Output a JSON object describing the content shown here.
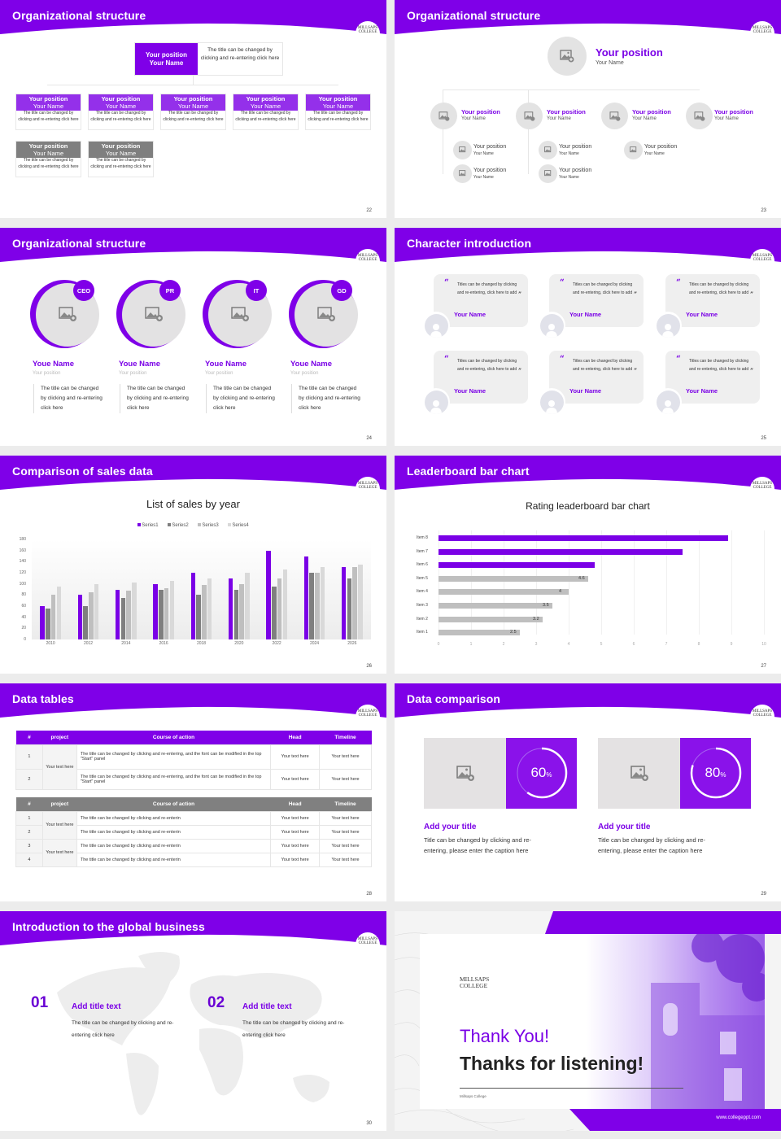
{
  "brand": {
    "primary": "#7f00e8",
    "gray_header": "#7f7f7f",
    "logo_line1": "MILLSAPS",
    "logo_line2": "COLLEGE"
  },
  "slides": {
    "s22": {
      "title": "Organizational structure",
      "page": "22",
      "top": {
        "position": "Your position",
        "name": "Your Name",
        "desc": "The title can be changed by clicking and re-entering click here"
      },
      "row1": [
        {
          "position": "Your position",
          "name": "Your Name",
          "desc": "The title can be changed by clicking and re-entering click here"
        },
        {
          "position": "Your position",
          "name": "Your Name",
          "desc": "The title can be changed by clicking and re-entering click here"
        },
        {
          "position": "Your position",
          "name": "Your Name",
          "desc": "The title can be changed by clicking and re-entering click here"
        },
        {
          "position": "Your position",
          "name": "Your Name",
          "desc": "The title can be changed by clicking and re-entering click here"
        },
        {
          "position": "Your position",
          "name": "Your Name",
          "desc": "The title can be changed by clicking and re-entering click here"
        }
      ],
      "row2": [
        {
          "position": "Your position",
          "name": "Your Name",
          "desc": "The title can be changed by clicking and re-entering click here"
        },
        {
          "position": "Your position",
          "name": "Your Name",
          "desc": "The title can be changed by clicking and re-entering click here"
        }
      ]
    },
    "s23": {
      "title": "Organizational structure",
      "page": "23",
      "top": {
        "position": "Your position",
        "name": "Your Name"
      },
      "level1": [
        {
          "position": "Your position",
          "name": "Your Name"
        },
        {
          "position": "Your position",
          "name": "Your Name"
        },
        {
          "position": "Your position",
          "name": "Your Name"
        },
        {
          "position": "Your position",
          "name": "Your Name"
        }
      ],
      "level2": [
        {
          "position": "Your position",
          "name": "Your Name"
        },
        {
          "position": "Your position",
          "name": "Your Name"
        },
        {
          "position": "Your position",
          "name": "Your Name"
        },
        {
          "position": "Your position",
          "name": "Your Name"
        },
        {
          "position": "Your position",
          "name": "Your Name"
        }
      ]
    },
    "s24": {
      "title": "Organizational structure",
      "page": "24",
      "people": [
        {
          "badge": "CEO",
          "name": "Youe Name",
          "position": "Your position",
          "desc": "The title can be changed by clicking and re-entering click here"
        },
        {
          "badge": "PR",
          "name": "Youe Name",
          "position": "Your position",
          "desc": "The title can be changed by clicking and re-entering click here"
        },
        {
          "badge": "IT",
          "name": "Youe Name",
          "position": "Your position",
          "desc": "The title can be changed by clicking and re-entering click here"
        },
        {
          "badge": "GD",
          "name": "Youe Name",
          "position": "Your position",
          "desc": "The title can be changed by clicking and re-entering click here"
        }
      ]
    },
    "s25": {
      "title": "Character introduction",
      "page": "25",
      "quotes": [
        {
          "text": "Titles can be changed by clicking and re-entering, click here to add",
          "name": "Your Name"
        },
        {
          "text": "Titles can be changed by clicking and re-entering, click here to add",
          "name": "Your Name"
        },
        {
          "text": "Titles can be changed by clicking and re-entering, click here to add",
          "name": "Your Name"
        },
        {
          "text": "Titles can be changed by clicking and re-entering, click here to add",
          "name": "Your Name"
        },
        {
          "text": "Titles can be changed by clicking and re-entering, click here to add",
          "name": "Your Name"
        },
        {
          "text": "Titles can be changed by clicking and re-entering, click here to add",
          "name": "Your Name"
        }
      ],
      "open_quote": "“",
      "close_quote": "”"
    },
    "s26": {
      "title": "Comparison of sales data",
      "page": "26"
    },
    "s27": {
      "title": "Leaderboard bar chart",
      "page": "27"
    },
    "s28": {
      "title": "Data tables",
      "page": "28",
      "headers": [
        "#",
        "project",
        "Course of action",
        "Head",
        "Timeline"
      ],
      "table1": {
        "project": "Your text here",
        "rows": [
          {
            "num": "1",
            "action": "The title can be changed by clicking and re-entering, and the font can be modified in the top \"Start\" panel",
            "head": "Your text here",
            "timeline": "Your text here"
          },
          {
            "num": "2",
            "action": "The title can be changed by clicking and re-entering, and the font can be modified in the top \"Start\" panel",
            "head": "Your text here",
            "timeline": "Your text here"
          }
        ]
      },
      "table2": {
        "project_a": "Your text here",
        "project_b": "Your text here",
        "rows": [
          {
            "num": "1",
            "action": "The title can be changed by clicking and re-enterin",
            "head": "Your text here",
            "timeline": "Your text here"
          },
          {
            "num": "2",
            "action": "The title can be changed by clicking and re-enterin",
            "head": "Your text here",
            "timeline": "Your text here"
          },
          {
            "num": "3",
            "action": "The title can be changed by clicking and re-enterin",
            "head": "Your text here",
            "timeline": "Your text here"
          },
          {
            "num": "4",
            "action": "The title can be changed by clicking and re-enterin",
            "head": "Your text here",
            "timeline": "Your text here"
          }
        ]
      }
    },
    "s29": {
      "title": "Data comparison",
      "page": "29",
      "items": [
        {
          "percent": "60",
          "unit": "%",
          "value": 60,
          "heading": "Add your title",
          "desc": "Title can be changed by clicking and re-entering, please enter the caption here"
        },
        {
          "percent": "80",
          "unit": "%",
          "value": 80,
          "heading": "Add your title",
          "desc": "Title can be changed by clicking and re-entering, please enter the caption here"
        }
      ]
    },
    "s30": {
      "title": "Introduction to the global business",
      "page": "30",
      "items": [
        {
          "num": "01",
          "heading": "Add title text",
          "desc": "The title can be changed by clicking and re-entering click here"
        },
        {
          "num": "02",
          "heading": "Add title text",
          "desc": "The title can be changed by clicking and re-entering click here"
        }
      ]
    },
    "s31": {
      "logo_line1": "MILLSAPS",
      "logo_line2": "COLLEGE",
      "thank_you": "Thank You!",
      "thanks_listening": "Thanks for listening!",
      "subtitle": "Millsaps College",
      "url": "www.collegeppt.com"
    }
  },
  "chart_data": [
    {
      "type": "bar",
      "title": "List of sales by year",
      "categories": [
        "2010",
        "2012",
        "2014",
        "2016",
        "2018",
        "2020",
        "2022",
        "2024",
        "2026"
      ],
      "series": [
        {
          "name": "Series1",
          "color": "#7a00e6",
          "values": [
            60,
            80,
            90,
            100,
            120,
            110,
            160,
            150,
            130
          ]
        },
        {
          "name": "Series2",
          "color": "#7f7f7f",
          "values": [
            55,
            60,
            75,
            90,
            80,
            90,
            95,
            120,
            110
          ]
        },
        {
          "name": "Series3",
          "color": "#bfbfbf",
          "values": [
            80,
            85,
            88,
            92,
            98,
            100,
            110,
            120,
            130
          ]
        },
        {
          "name": "Series4",
          "color": "#d9d9d9",
          "values": [
            95,
            99,
            102,
            105,
            110,
            120,
            126,
            130,
            135
          ]
        }
      ],
      "xlabel": "",
      "ylabel": "",
      "ylim": [
        0,
        180
      ],
      "yticks": [
        0,
        20,
        40,
        60,
        80,
        100,
        120,
        140,
        160,
        180
      ],
      "legend_position": "top",
      "grid": false
    },
    {
      "type": "bar",
      "orientation": "horizontal",
      "title": "Rating leaderboard bar chart",
      "categories": [
        "Item 8",
        "Item 7",
        "Item 6",
        "Item 5",
        "Item 4",
        "Item 3",
        "Item 2",
        "Item 1"
      ],
      "values": [
        8.9,
        7.5,
        4.8,
        4.6,
        4,
        3.5,
        3.2,
        2.5
      ],
      "value_labels": [
        "",
        "",
        "",
        "4.6",
        "4",
        "3.5",
        "3.2",
        "2.5"
      ],
      "highlight": [
        "Item 8",
        "Item 7",
        "Item 6"
      ],
      "colors": {
        "highlight": "#7a00e6",
        "default": "#bfbfbf"
      },
      "xlim": [
        0,
        10
      ],
      "xticks": [
        0,
        1,
        2,
        3,
        4,
        5,
        6,
        7,
        8,
        9,
        10
      ],
      "xlabel": "",
      "ylabel": "",
      "grid": true
    }
  ]
}
